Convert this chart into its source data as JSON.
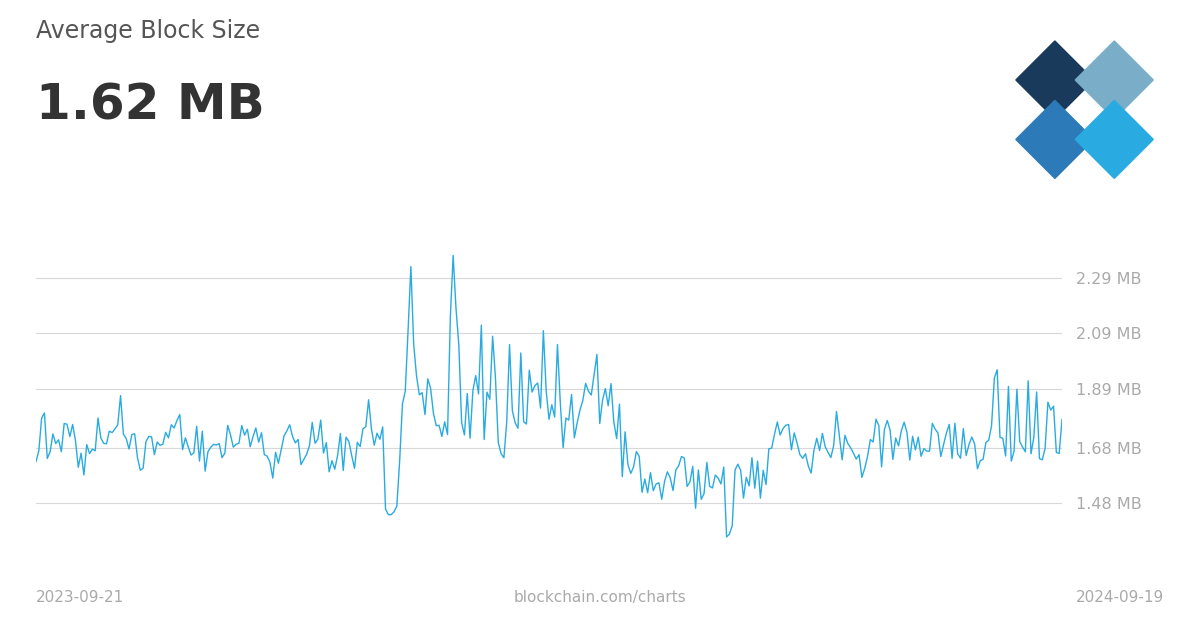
{
  "title_small": "Average Block Size",
  "title_large": "1.62 MB",
  "y_tick_labels": [
    "1.48 MB",
    "1.68 MB",
    "1.89 MB",
    "2.09 MB",
    "2.29 MB"
  ],
  "y_tick_values": [
    1.48,
    1.68,
    1.89,
    2.09,
    2.29
  ],
  "x_label_left": "2023-09-21",
  "x_label_center": "blockchain.com/charts",
  "x_label_right": "2024-09-19",
  "line_color": "#29ABE2",
  "background_color": "#ffffff",
  "grid_color": "#d8d8d8",
  "title_small_color": "#555555",
  "title_large_color": "#333333",
  "tick_label_color": "#aaaaaa",
  "bottom_label_color": "#aaaaaa",
  "ylim_min": 1.32,
  "ylim_max": 2.45,
  "logo_colors": [
    "#1a3a5c",
    "#7aaec8",
    "#2d7ab8",
    "#29ABE2"
  ]
}
